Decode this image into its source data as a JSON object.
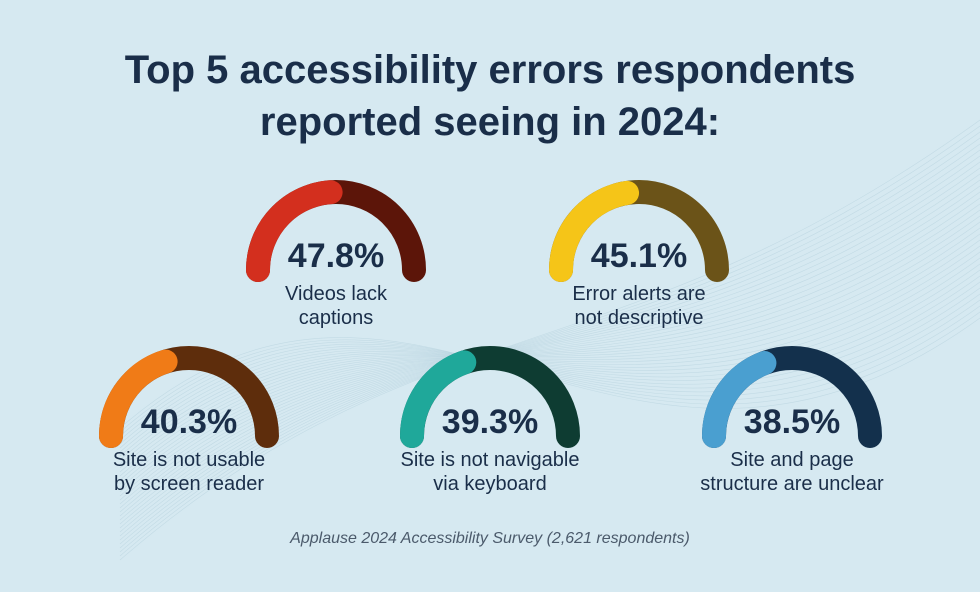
{
  "title_lines": [
    "Top 5 accessibility errors respondents",
    "reported seeing in 2024:"
  ],
  "source": "Applause 2024 Accessibility Survey (2,621 respondents)",
  "chart_data": {
    "type": "gauge",
    "unit": "%",
    "title": "Top 5 accessibility errors respondents reported seeing in 2024:",
    "items": [
      {
        "value": 47.8,
        "value_label": "47.8%",
        "label_lines": [
          "Videos lack",
          "captions"
        ],
        "color": "#d32f1e",
        "track_color": "#5c1509"
      },
      {
        "value": 45.1,
        "value_label": "45.1%",
        "label_lines": [
          "Error alerts are",
          "not descriptive"
        ],
        "color": "#f5c518",
        "track_color": "#6b5318"
      },
      {
        "value": 40.3,
        "value_label": "40.3%",
        "label_lines": [
          "Site is not usable",
          "by screen reader"
        ],
        "color": "#f07b17",
        "track_color": "#5e2d0c"
      },
      {
        "value": 39.3,
        "value_label": "39.3%",
        "label_lines": [
          "Site is not navigable",
          "via keyboard"
        ],
        "color": "#1fa89a",
        "track_color": "#0e3c32"
      },
      {
        "value": 38.5,
        "value_label": "38.5%",
        "label_lines": [
          "Site and page",
          "structure are unclear"
        ],
        "color": "#4a9fd0",
        "track_color": "#13304c"
      }
    ]
  }
}
